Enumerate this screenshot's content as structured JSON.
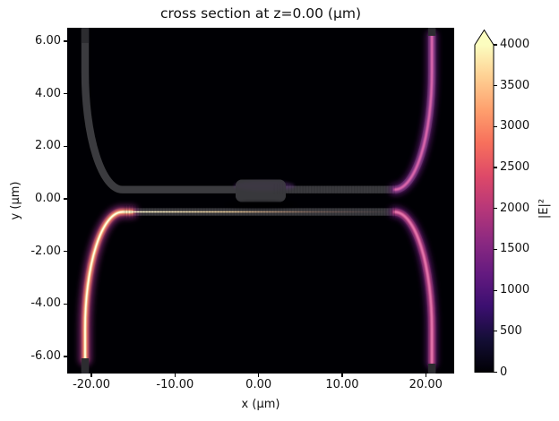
{
  "title": "cross section at z=0.00 (μm)",
  "axes": {
    "xlabel": "x (μm)",
    "ylabel": "y (μm)",
    "x_range": [
      -22.9,
      23.4
    ],
    "y_range": [
      -6.65,
      6.51
    ],
    "x_ticks": [
      {
        "value": -20,
        "label": "-20.00"
      },
      {
        "value": -10,
        "label": "-10.00"
      },
      {
        "value": 0,
        "label": "0.00"
      },
      {
        "value": 10,
        "label": "10.00"
      },
      {
        "value": 20,
        "label": "20.00"
      }
    ],
    "y_ticks": [
      {
        "value": 6,
        "label": "6.00"
      },
      {
        "value": 4,
        "label": "4.00"
      },
      {
        "value": 2,
        "label": "2.00"
      },
      {
        "value": 0,
        "label": "0.00"
      },
      {
        "value": -2,
        "label": "-2.00"
      },
      {
        "value": -4,
        "label": "-4.00"
      },
      {
        "value": -6,
        "label": "-6.00"
      }
    ]
  },
  "colorbar": {
    "label": "|E|²",
    "vmin": 0,
    "vmax": 4000,
    "extend": "max",
    "colormap": "magma",
    "over_color": "#fcfdbf",
    "ticks": [
      {
        "value": 0,
        "label": "0"
      },
      {
        "value": 500,
        "label": "500"
      },
      {
        "value": 1000,
        "label": "1000"
      },
      {
        "value": 1500,
        "label": "1500"
      },
      {
        "value": 2000,
        "label": "2000"
      },
      {
        "value": 2500,
        "label": "2500"
      },
      {
        "value": 3000,
        "label": "3000"
      },
      {
        "value": 3500,
        "label": "3500"
      },
      {
        "value": 4000,
        "label": "4000"
      }
    ]
  },
  "chart_data": {
    "type": "heatmap",
    "title": "cross section at z=0.00 (μm)",
    "xlabel": "x (μm)",
    "ylabel": "y (μm)",
    "x_range": [
      -22.9,
      23.4
    ],
    "y_range": [
      -6.65,
      6.51
    ],
    "colormap": "magma",
    "clim": [
      0,
      4000
    ],
    "colorbar_label": "|E|²",
    "colorbar_extend": "max",
    "x_tick_values": [
      -20,
      -10,
      0,
      10,
      20
    ],
    "y_tick_values": [
      6,
      4,
      2,
      0,
      -2,
      -4,
      -6
    ],
    "colorbar_tick_values": [
      0,
      500,
      1000,
      1500,
      2000,
      2500,
      3000,
      3500,
      4000
    ],
    "background_value": 0,
    "description": "Simulated |E|² field intensity in a directional-coupler photonic circuit at cross-section plane z=0; bright input mode enters at the bottom-left S-bend, propagates along the lower bus waveguide (y≈-0.5 μm) and gradually couples to the upper waveguide (y≈+0.35 μm); outputs exit via bottom-right and top-right S-bends at x≈±20.8 μm; waveguide structure shown as translucent gray overlay.",
    "features": [
      {
        "name": "input-s-bend",
        "corner": "bottom-left",
        "vertical_x": -20.8,
        "joins_y": -0.5,
        "bend_span_x": [
          -20.8,
          -16.3
        ],
        "peak_intensity": 4000
      },
      {
        "name": "lower-bus-waveguide",
        "y": -0.5,
        "x_span": [
          -16.3,
          16.3
        ],
        "intensity_left": 4000,
        "intensity_right": 1800
      },
      {
        "name": "through-s-bend",
        "corner": "bottom-right",
        "vertical_x": 20.8,
        "intensity": 1500
      },
      {
        "name": "upper-waveguide",
        "y": 0.35,
        "x_span": [
          -16.3,
          16.3
        ],
        "intensity_left": 0,
        "intensity_right": 1500
      },
      {
        "name": "upper-left-arm",
        "corner": "top-left",
        "vertical_x": -20.8,
        "intensity": 0,
        "note": "structure only, no field"
      },
      {
        "name": "coupled-s-bend",
        "corner": "top-right",
        "vertical_x": 20.8,
        "intensity": 1500
      },
      {
        "name": "widened-coupler-section",
        "x_span": [
          -2.7,
          3.1
        ],
        "y_span": [
          -0.1,
          0.7
        ]
      },
      {
        "name": "port-stubs",
        "note": "short dark-gray port markers at the four domain edges"
      }
    ]
  }
}
